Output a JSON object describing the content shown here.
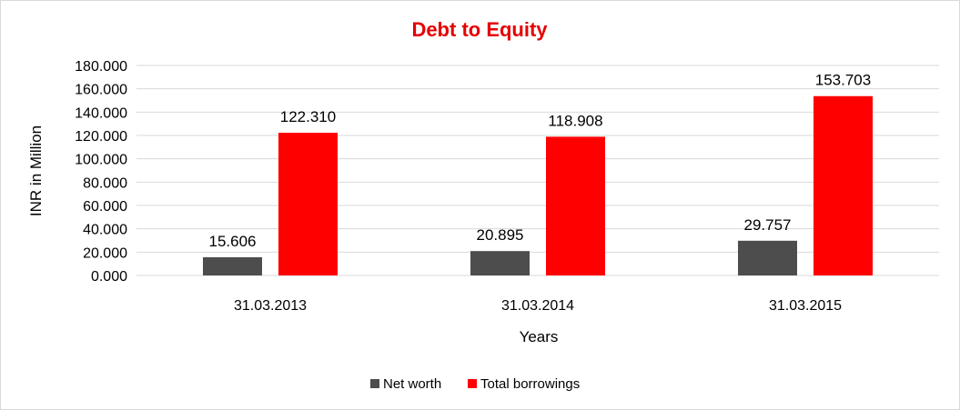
{
  "chart_data": {
    "type": "bar",
    "title": "Debt to Equity",
    "title_color": "#e60000",
    "xlabel": "Years",
    "ylabel": "INR in Million",
    "categories": [
      "31.03.2013",
      "31.03.2014",
      "31.03.2015"
    ],
    "series": [
      {
        "name": "Net worth",
        "color": "#4d4d4d",
        "values": [
          15.606,
          20.895,
          29.757
        ],
        "labels": [
          "15.606",
          "20.895",
          "29.757"
        ]
      },
      {
        "name": "Total borrowings",
        "color": "#ff0000",
        "values": [
          122.31,
          118.908,
          153.703
        ],
        "labels": [
          "122.310",
          "118.908",
          "153.703"
        ]
      }
    ],
    "ylim": [
      0,
      180
    ],
    "yticks": [
      "0.000",
      "20.000",
      "40.000",
      "60.000",
      "80.000",
      "100.000",
      "120.000",
      "140.000",
      "160.000",
      "180.000"
    ],
    "grid": true,
    "legend_position": "bottom"
  }
}
